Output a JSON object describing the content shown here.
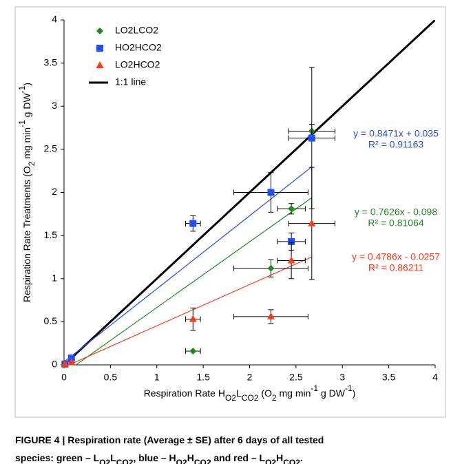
{
  "chart_data": {
    "type": "scatter",
    "x_label": [
      {
        "text": "Respiration Rate H"
      },
      {
        "text": "O2",
        "script": "sub"
      },
      {
        "text": "L"
      },
      {
        "text": "CO2",
        "script": "sub"
      },
      {
        "text": " (O"
      },
      {
        "text": "2",
        "script": "sub"
      },
      {
        "text": " mg min"
      },
      {
        "text": "-1",
        "script": "super"
      },
      {
        "text": " g DW"
      },
      {
        "text": "-1",
        "script": "super"
      },
      {
        "text": ")"
      }
    ],
    "y_label": [
      {
        "text": "Respiration Rate Treatments (O"
      },
      {
        "text": "2",
        "script": "sub"
      },
      {
        "text": " mg min"
      },
      {
        "text": "-1",
        "script": "super"
      },
      {
        "text": " g DW"
      },
      {
        "text": "-1",
        "script": "super"
      },
      {
        "text": ")"
      }
    ],
    "xlim": [
      0,
      4
    ],
    "ylim": [
      0,
      4
    ],
    "xticks": [
      0,
      0.5,
      1,
      1.5,
      2,
      2.5,
      3,
      3.5,
      4
    ],
    "yticks": [
      0,
      0.5,
      1,
      1.5,
      2,
      2.5,
      3,
      3.5,
      4
    ],
    "grid": false,
    "legend": "top-left",
    "series": [
      {
        "name": "LO2LCO2",
        "color": "#1e8a1e",
        "marker": "diamond",
        "x": [
          0.01,
          0.07,
          1.39,
          2.23,
          2.45,
          2.67
        ],
        "values": [
          0.01,
          0.05,
          0.16,
          1.12,
          1.81,
          2.71
        ],
        "xerr": [
          0,
          0,
          0.08,
          0.4,
          0.15,
          0.25
        ],
        "yerr": [
          0,
          0,
          0,
          0.1,
          0.06,
          0.08
        ],
        "trendline": {
          "slope": 0.7626,
          "intercept": -0.098,
          "label": "y = 0.7626x - 0.098",
          "r2_label": "R² = 0.81064"
        }
      },
      {
        "name": "HO2HCO2",
        "color": "#1f4fff",
        "marker": "square",
        "x": [
          0.01,
          0.08,
          1.39,
          2.23,
          2.45,
          2.67
        ],
        "values": [
          0.01,
          0.08,
          1.64,
          2.0,
          1.43,
          2.63
        ],
        "xerr": [
          0,
          0,
          0.08,
          0.4,
          0.15,
          0.25
        ],
        "yerr": [
          0,
          0,
          0.09,
          0.23,
          0.1,
          0.82
        ],
        "trendline": {
          "slope": 0.8471,
          "intercept": 0.035,
          "label": "y = 0.8471x + 0.035",
          "r2_label": "R² = 0.91163"
        }
      },
      {
        "name": "LO2HCO2",
        "color": "#ff3a1a",
        "marker": "triangle",
        "x": [
          0.01,
          0.08,
          1.39,
          2.23,
          2.45,
          2.67
        ],
        "values": [
          0.01,
          0.03,
          0.53,
          0.56,
          1.21,
          1.64
        ],
        "xerr": [
          0,
          0,
          0.08,
          0.4,
          0.15,
          0.25
        ],
        "yerr": [
          0,
          0,
          0.13,
          0.08,
          0.21,
          0.65
        ],
        "trendline": {
          "slope": 0.4786,
          "intercept": -0.0257,
          "label": "y = 0.4786x - 0.0257",
          "r2_label": "R² = 0.86211"
        }
      }
    ],
    "reference_line": {
      "name": "1:1 line",
      "color": "#000000"
    },
    "caption": [
      [
        {
          "text": "FIGURE 4 | Respiration rate (Average ± SE) after 6 days of all tested"
        }
      ],
      [
        {
          "text": "species: green – L"
        },
        {
          "text": "O2",
          "script": "sub"
        },
        {
          "text": "L"
        },
        {
          "text": "CO2",
          "script": "sub"
        },
        {
          "text": ", blue – H"
        },
        {
          "text": "O2",
          "script": "sub"
        },
        {
          "text": "H"
        },
        {
          "text": "CO2",
          "script": "sub"
        },
        {
          "text": " and red – L"
        },
        {
          "text": "O2",
          "script": "sub"
        },
        {
          "text": "H"
        },
        {
          "text": "CO2",
          "script": "sub"
        },
        {
          "text": "."
        }
      ]
    ]
  }
}
